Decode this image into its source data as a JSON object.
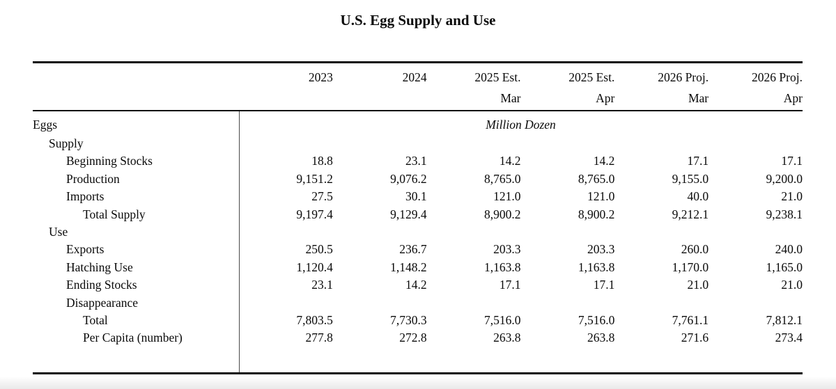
{
  "title": "U.S. Egg Supply and Use",
  "unit_label": "Million Dozen",
  "table": {
    "columns": [
      {
        "year": "2023",
        "period": ""
      },
      {
        "year": "2024",
        "period": ""
      },
      {
        "year": "2025 Est.",
        "period": "Mar"
      },
      {
        "year": "2025 Est.",
        "period": "Apr"
      },
      {
        "year": "2026 Proj.",
        "period": "Mar"
      },
      {
        "year": "2026 Proj.",
        "period": "Apr"
      }
    ],
    "rows": [
      {
        "label": "Eggs",
        "values": []
      },
      {
        "label": "Supply",
        "values": []
      },
      {
        "label": "Beginning Stocks",
        "values": [
          "18.8",
          "23.1",
          "14.2",
          "14.2",
          "17.1",
          "17.1"
        ]
      },
      {
        "label": "Production",
        "values": [
          "9,151.2",
          "9,076.2",
          "8,765.0",
          "8,765.0",
          "9,155.0",
          "9,200.0"
        ]
      },
      {
        "label": "Imports",
        "values": [
          "27.5",
          "30.1",
          "121.0",
          "121.0",
          "40.0",
          "21.0"
        ]
      },
      {
        "label": "Total Supply",
        "values": [
          "9,197.4",
          "9,129.4",
          "8,900.2",
          "8,900.2",
          "9,212.1",
          "9,238.1"
        ]
      },
      {
        "label": "Use",
        "values": []
      },
      {
        "label": "Exports",
        "values": [
          "250.5",
          "236.7",
          "203.3",
          "203.3",
          "260.0",
          "240.0"
        ]
      },
      {
        "label": "Hatching Use",
        "values": [
          "1,120.4",
          "1,148.2",
          "1,163.8",
          "1,163.8",
          "1,170.0",
          "1,165.0"
        ]
      },
      {
        "label": "Ending Stocks",
        "values": [
          "23.1",
          "14.2",
          "17.1",
          "17.1",
          "21.0",
          "21.0"
        ]
      },
      {
        "label": "Disappearance",
        "values": []
      },
      {
        "label": "Total",
        "values": [
          "7,803.5",
          "7,730.3",
          "7,516.0",
          "7,516.0",
          "7,761.1",
          "7,812.1"
        ]
      },
      {
        "label": "Per Capita (number)",
        "values": [
          "277.8",
          "272.8",
          "263.8",
          "263.8",
          "271.6",
          "273.4"
        ]
      }
    ]
  }
}
